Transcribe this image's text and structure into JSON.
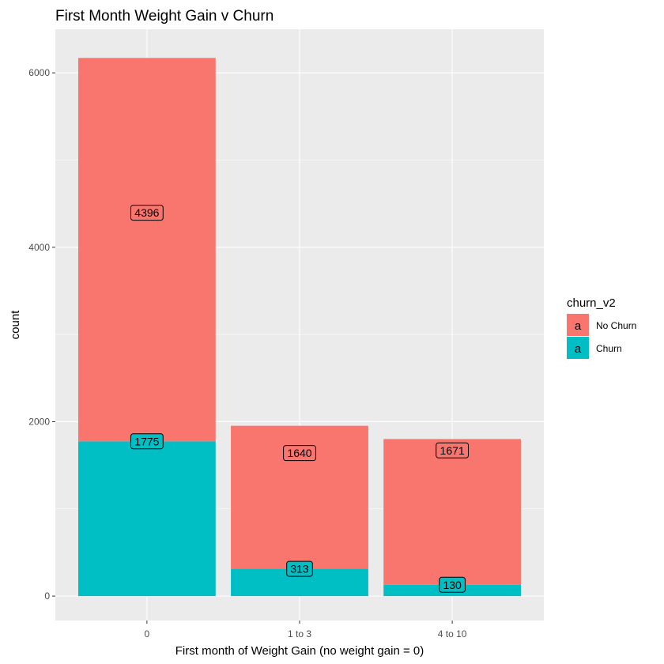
{
  "chart_data": {
    "type": "bar",
    "stacked": true,
    "title": "First Month Weight Gain v Churn",
    "xlabel": "First month of Weight Gain (no weight gain =  0)",
    "ylabel": "count",
    "categories": [
      "0",
      "1 to 3",
      "4 to 10"
    ],
    "series": [
      {
        "name": "No Churn",
        "values": [
          4396,
          1640,
          1671
        ],
        "color": "#F8766D"
      },
      {
        "name": "Churn",
        "values": [
          1775,
          313,
          130
        ],
        "color": "#00BFC4"
      }
    ],
    "ylim": [
      -280,
      6500
    ],
    "yticks": [
      0,
      2000,
      4000,
      6000
    ],
    "ytick_labels": [
      "0",
      "2000",
      "4000",
      "6000"
    ],
    "grid": true,
    "panel_background": "#EBEBEB",
    "legend": {
      "title": "churn_v2",
      "position": "right",
      "key_glyph": "a"
    }
  }
}
